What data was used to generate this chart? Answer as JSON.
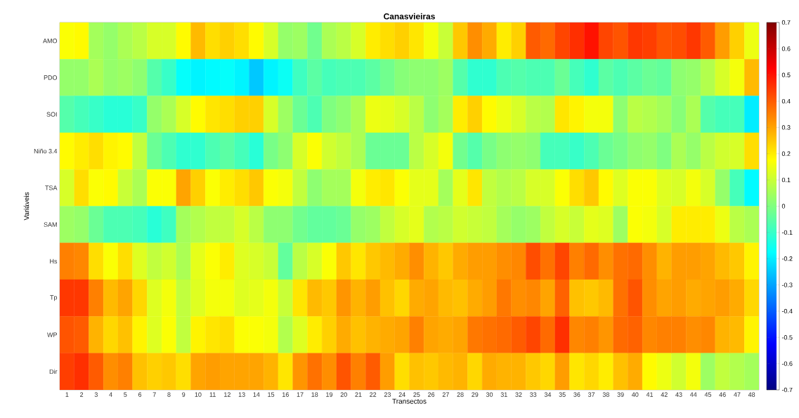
{
  "chart_data": {
    "type": "heatmap",
    "title": "Canasvieiras",
    "xlabel": "Transectos",
    "ylabel": "Variáveis",
    "categories": [
      "1",
      "2",
      "3",
      "4",
      "5",
      "6",
      "7",
      "8",
      "9",
      "10",
      "11",
      "12",
      "13",
      "14",
      "15",
      "16",
      "17",
      "18",
      "19",
      "20",
      "21",
      "22",
      "23",
      "24",
      "25",
      "26",
      "27",
      "28",
      "29",
      "30",
      "31",
      "32",
      "33",
      "34",
      "35",
      "36",
      "37",
      "38",
      "39",
      "40",
      "41",
      "42",
      "43",
      "44",
      "45",
      "46",
      "47",
      "48"
    ],
    "y_categories": [
      "AMO",
      "PDO",
      "SOI",
      "Niño 3.4",
      "TSA",
      "SAM",
      "Hs",
      "Tp",
      "WP",
      "Dir"
    ],
    "cells": [
      [
        0.17,
        0.18,
        0.05,
        0.03,
        0.06,
        0.08,
        0.12,
        0.12,
        0.18,
        0.27,
        0.22,
        0.24,
        0.22,
        0.18,
        0.12,
        0.03,
        0.04,
        -0.02,
        0.06,
        0.08,
        0.12,
        0.2,
        0.22,
        0.24,
        0.21,
        0.16,
        0.1,
        0.25,
        0.33,
        0.29,
        0.2,
        0.24,
        0.4,
        0.38,
        0.43,
        0.46,
        0.5,
        0.43,
        0.41,
        0.45,
        0.44,
        0.41,
        0.42,
        0.45,
        0.4,
        0.31,
        0.24,
        0.15
      ],
      [
        0.03,
        0.03,
        0.06,
        0.03,
        0.04,
        0.02,
        -0.06,
        -0.1,
        -0.17,
        -0.19,
        -0.18,
        -0.17,
        -0.19,
        -0.25,
        -0.19,
        -0.16,
        -0.09,
        -0.05,
        -0.08,
        -0.07,
        -0.07,
        -0.05,
        -0.02,
        0.01,
        0.02,
        0.02,
        0.04,
        -0.06,
        -0.11,
        -0.11,
        -0.07,
        -0.06,
        -0.07,
        -0.07,
        -0.03,
        -0.08,
        -0.11,
        -0.05,
        -0.07,
        -0.05,
        -0.03,
        -0.04,
        0.02,
        0.03,
        0.07,
        0.12,
        0.16,
        0.27
      ],
      [
        -0.06,
        -0.08,
        -0.1,
        -0.12,
        -0.12,
        -0.1,
        0.03,
        0.06,
        0.12,
        0.18,
        0.21,
        0.22,
        0.24,
        0.24,
        0.12,
        0.04,
        -0.03,
        -0.07,
        0.0,
        0.02,
        0.06,
        0.15,
        0.14,
        0.12,
        0.08,
        0.02,
        0.05,
        0.2,
        0.24,
        0.18,
        0.15,
        0.12,
        0.08,
        0.07,
        0.21,
        0.19,
        0.16,
        0.16,
        0.02,
        0.08,
        0.07,
        0.05,
        0.01,
        0.06,
        -0.06,
        -0.08,
        -0.08,
        -0.2
      ],
      [
        0.18,
        0.2,
        0.22,
        0.19,
        0.18,
        0.09,
        -0.03,
        -0.07,
        -0.11,
        -0.11,
        -0.07,
        -0.05,
        -0.08,
        -0.12,
        -0.01,
        0.02,
        0.12,
        0.17,
        0.11,
        0.09,
        0.06,
        -0.03,
        -0.03,
        -0.03,
        0.08,
        0.12,
        0.16,
        -0.02,
        -0.06,
        -0.01,
        0.02,
        0.03,
        0.02,
        -0.08,
        -0.08,
        -0.1,
        -0.07,
        -0.03,
        -0.01,
        0.02,
        0.03,
        0.0,
        0.06,
        0.03,
        0.08,
        0.11,
        0.12,
        0.22
      ],
      [
        0.12,
        0.22,
        0.17,
        0.18,
        0.1,
        0.06,
        0.17,
        0.17,
        0.3,
        0.24,
        0.17,
        0.2,
        0.22,
        0.25,
        0.17,
        0.16,
        0.09,
        0.02,
        0.05,
        0.05,
        0.16,
        0.2,
        0.21,
        0.17,
        0.14,
        0.14,
        0.05,
        0.14,
        0.21,
        0.09,
        0.07,
        0.08,
        0.12,
        0.12,
        0.17,
        0.22,
        0.25,
        0.18,
        0.13,
        0.17,
        0.17,
        0.13,
        0.12,
        0.16,
        0.12,
        0.03,
        -0.08,
        -0.18
      ],
      [
        0.04,
        0.03,
        -0.03,
        -0.07,
        -0.07,
        -0.08,
        -0.12,
        -0.09,
        0.05,
        0.07,
        0.09,
        0.09,
        0.12,
        0.08,
        0.02,
        0.02,
        -0.02,
        -0.04,
        -0.04,
        -0.03,
        0.03,
        0.04,
        0.09,
        0.12,
        0.14,
        0.07,
        0.08,
        0.11,
        0.1,
        0.09,
        0.05,
        0.03,
        0.04,
        0.09,
        0.12,
        0.1,
        0.14,
        0.13,
        0.04,
        0.17,
        0.16,
        0.12,
        0.2,
        0.2,
        0.2,
        0.15,
        0.08,
        0.06
      ],
      [
        0.35,
        0.34,
        0.22,
        0.17,
        0.22,
        0.13,
        0.09,
        0.11,
        0.06,
        0.14,
        0.17,
        0.2,
        0.13,
        0.12,
        0.1,
        -0.04,
        0.08,
        0.12,
        0.17,
        0.25,
        0.21,
        0.25,
        0.27,
        0.29,
        0.33,
        0.28,
        0.25,
        0.29,
        0.31,
        0.31,
        0.33,
        0.34,
        0.42,
        0.37,
        0.43,
        0.35,
        0.38,
        0.33,
        0.37,
        0.38,
        0.33,
        0.28,
        0.31,
        0.31,
        0.3,
        0.27,
        0.25,
        0.19
      ],
      [
        0.45,
        0.45,
        0.35,
        0.27,
        0.3,
        0.23,
        0.13,
        0.16,
        0.09,
        0.13,
        0.16,
        0.16,
        0.13,
        0.14,
        0.16,
        0.1,
        0.21,
        0.27,
        0.25,
        0.32,
        0.28,
        0.31,
        0.26,
        0.23,
        0.29,
        0.3,
        0.27,
        0.26,
        0.29,
        0.31,
        0.36,
        0.33,
        0.34,
        0.3,
        0.39,
        0.26,
        0.25,
        0.27,
        0.37,
        0.41,
        0.33,
        0.3,
        0.31,
        0.29,
        0.3,
        0.31,
        0.29,
        0.23
      ],
      [
        0.41,
        0.4,
        0.28,
        0.23,
        0.26,
        0.19,
        0.13,
        0.17,
        0.09,
        0.19,
        0.21,
        0.22,
        0.17,
        0.17,
        0.16,
        0.07,
        0.13,
        0.2,
        0.24,
        0.29,
        0.26,
        0.28,
        0.29,
        0.3,
        0.35,
        0.3,
        0.29,
        0.3,
        0.36,
        0.37,
        0.38,
        0.4,
        0.43,
        0.38,
        0.46,
        0.34,
        0.35,
        0.32,
        0.38,
        0.39,
        0.34,
        0.35,
        0.35,
        0.33,
        0.34,
        0.28,
        0.27,
        0.19
      ],
      [
        0.44,
        0.46,
        0.4,
        0.33,
        0.35,
        0.26,
        0.24,
        0.25,
        0.22,
        0.3,
        0.31,
        0.3,
        0.3,
        0.3,
        0.28,
        0.21,
        0.32,
        0.37,
        0.33,
        0.41,
        0.35,
        0.4,
        0.31,
        0.22,
        0.26,
        0.25,
        0.27,
        0.28,
        0.23,
        0.29,
        0.28,
        0.28,
        0.25,
        0.23,
        0.31,
        0.21,
        0.23,
        0.2,
        0.26,
        0.29,
        0.18,
        0.15,
        0.11,
        0.16,
        0.04,
        0.09,
        0.07,
        0.05
      ]
    ],
    "clim": [
      -0.7,
      0.7
    ],
    "cticks": [
      -0.7,
      -0.6,
      -0.5,
      -0.4,
      -0.3,
      -0.2,
      -0.1,
      0,
      0.1,
      0.2,
      0.3,
      0.4,
      0.5,
      0.6,
      0.7
    ]
  }
}
